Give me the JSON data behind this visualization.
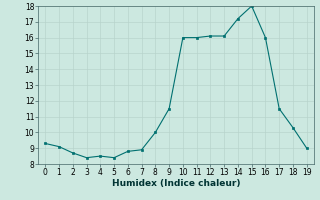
{
  "xlabel": "Humidex (Indice chaleur)",
  "x": [
    0,
    1,
    2,
    3,
    4,
    5,
    6,
    7,
    8,
    9,
    10,
    11,
    12,
    13,
    14,
    15,
    16,
    17,
    18,
    19
  ],
  "y": [
    9.3,
    9.1,
    8.7,
    8.4,
    8.5,
    8.4,
    8.8,
    8.9,
    10.0,
    11.5,
    16.0,
    16.0,
    16.1,
    16.1,
    17.2,
    18.0,
    16.0,
    11.5,
    10.3,
    9.0
  ],
  "line_color": "#007070",
  "marker_color": "#007070",
  "bg_color": "#cce8e0",
  "grid_color": "#b8d4cc",
  "ylim": [
    8,
    18
  ],
  "xlim": [
    -0.5,
    19.5
  ],
  "yticks": [
    8,
    9,
    10,
    11,
    12,
    13,
    14,
    15,
    16,
    17,
    18
  ],
  "xticks": [
    0,
    1,
    2,
    3,
    4,
    5,
    6,
    7,
    8,
    9,
    10,
    11,
    12,
    13,
    14,
    15,
    16,
    17,
    18,
    19
  ],
  "label_fontsize": 6.5,
  "tick_fontsize": 5.5
}
